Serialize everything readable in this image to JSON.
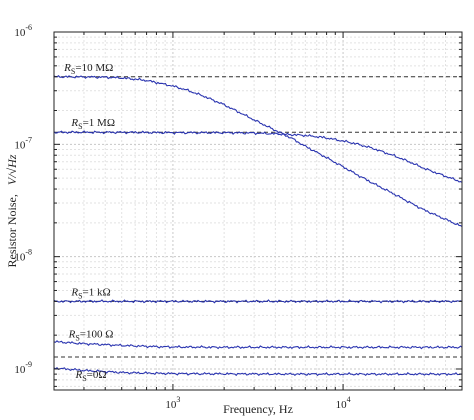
{
  "chart_data": {
    "type": "line",
    "title": "",
    "xlabel": "Frequency, Hz",
    "ylabel_prefix": "Resistor Noise,",
    "ylabel_unit": "V/√Hz",
    "x_scale": "log",
    "y_scale": "log",
    "xlim": [
      200,
      50000
    ],
    "ylim": [
      6.5e-10,
      1e-06
    ],
    "grid": true,
    "x_ticks": [
      {
        "value": 1000,
        "base": "10",
        "exp": "3"
      },
      {
        "value": 10000,
        "base": "10",
        "exp": "4"
      }
    ],
    "y_ticks": [
      {
        "value": 1e-09,
        "base": "10",
        "exp": "-9"
      },
      {
        "value": 1e-08,
        "base": "10",
        "exp": "-8"
      },
      {
        "value": 1e-07,
        "base": "10",
        "exp": "-7"
      },
      {
        "value": 1e-06,
        "base": "10",
        "exp": "-6"
      }
    ],
    "reference_levels": [
      4e-07,
      1.28e-07,
      4e-09,
      1.28e-09
    ],
    "series": [
      {
        "name_prefix": "R",
        "name_sub": "S",
        "name_value": "=10 MΩ",
        "label_at": [
          320,
          4.5e-07
        ],
        "x": [
          200,
          300,
          400,
          500,
          600,
          700,
          800,
          1000,
          1200,
          1500,
          2000,
          2500,
          3000,
          4000,
          5000,
          6000,
          7000,
          8000,
          10000,
          12000,
          15000,
          20000,
          25000,
          30000,
          40000,
          50000
        ],
        "y": [
          4e-07,
          3.98e-07,
          3.96e-07,
          3.9e-07,
          3.8e-07,
          3.7e-07,
          3.55e-07,
          3.3e-07,
          3.05e-07,
          2.7e-07,
          2.25e-07,
          1.9e-07,
          1.65e-07,
          1.33e-07,
          1.13e-07,
          9.6e-08,
          8.5e-08,
          7.6e-08,
          6.3e-08,
          5.4e-08,
          4.5e-08,
          3.6e-08,
          3e-08,
          2.6e-08,
          2.15e-08,
          1.85e-08
        ]
      },
      {
        "name_prefix": "R",
        "name_sub": "S",
        "name_value": "=1 MΩ",
        "label_at": [
          340,
          1.45e-07
        ],
        "x": [
          200,
          500,
          1000,
          2000,
          3000,
          4000,
          5000,
          6000,
          7000,
          8000,
          10000,
          12000,
          15000,
          20000,
          25000,
          30000,
          40000,
          50000
        ],
        "y": [
          1.28e-07,
          1.28e-07,
          1.27e-07,
          1.27e-07,
          1.26e-07,
          1.24e-07,
          1.22e-07,
          1.2e-07,
          1.17e-07,
          1.14e-07,
          1.07e-07,
          1.01e-07,
          9.2e-08,
          7.9e-08,
          6.9e-08,
          6.1e-08,
          5.2e-08,
          4.6e-08
        ]
      },
      {
        "name_prefix": "R",
        "name_sub": "S",
        "name_value": "=1 kΩ",
        "label_at": [
          330,
          4.5e-09
        ],
        "x": [
          200,
          50000
        ],
        "y": [
          4e-09,
          4e-09
        ]
      },
      {
        "name_prefix": "R",
        "name_sub": "S",
        "name_value": "=100 Ω",
        "label_at": [
          330,
          1.9e-09
        ],
        "x": [
          200,
          300,
          500,
          800,
          1000,
          2000,
          5000,
          10000,
          20000,
          50000
        ],
        "y": [
          1.75e-09,
          1.68e-09,
          1.62e-09,
          1.58e-09,
          1.57e-09,
          1.56e-09,
          1.56e-09,
          1.56e-09,
          1.56e-09,
          1.56e-09
        ]
      },
      {
        "name_prefix": "R",
        "name_sub": "S",
        "name_value": "=0Ω",
        "label_at": [
          330,
          8.3e-10
        ],
        "x": [
          200,
          300,
          500,
          800,
          1000,
          2000,
          5000,
          10000,
          20000,
          50000
        ],
        "y": [
          1.02e-09,
          9.7e-10,
          9.3e-10,
          9.15e-10,
          9.1e-10,
          9.05e-10,
          9e-10,
          9e-10,
          9e-10,
          9e-10
        ]
      }
    ]
  }
}
